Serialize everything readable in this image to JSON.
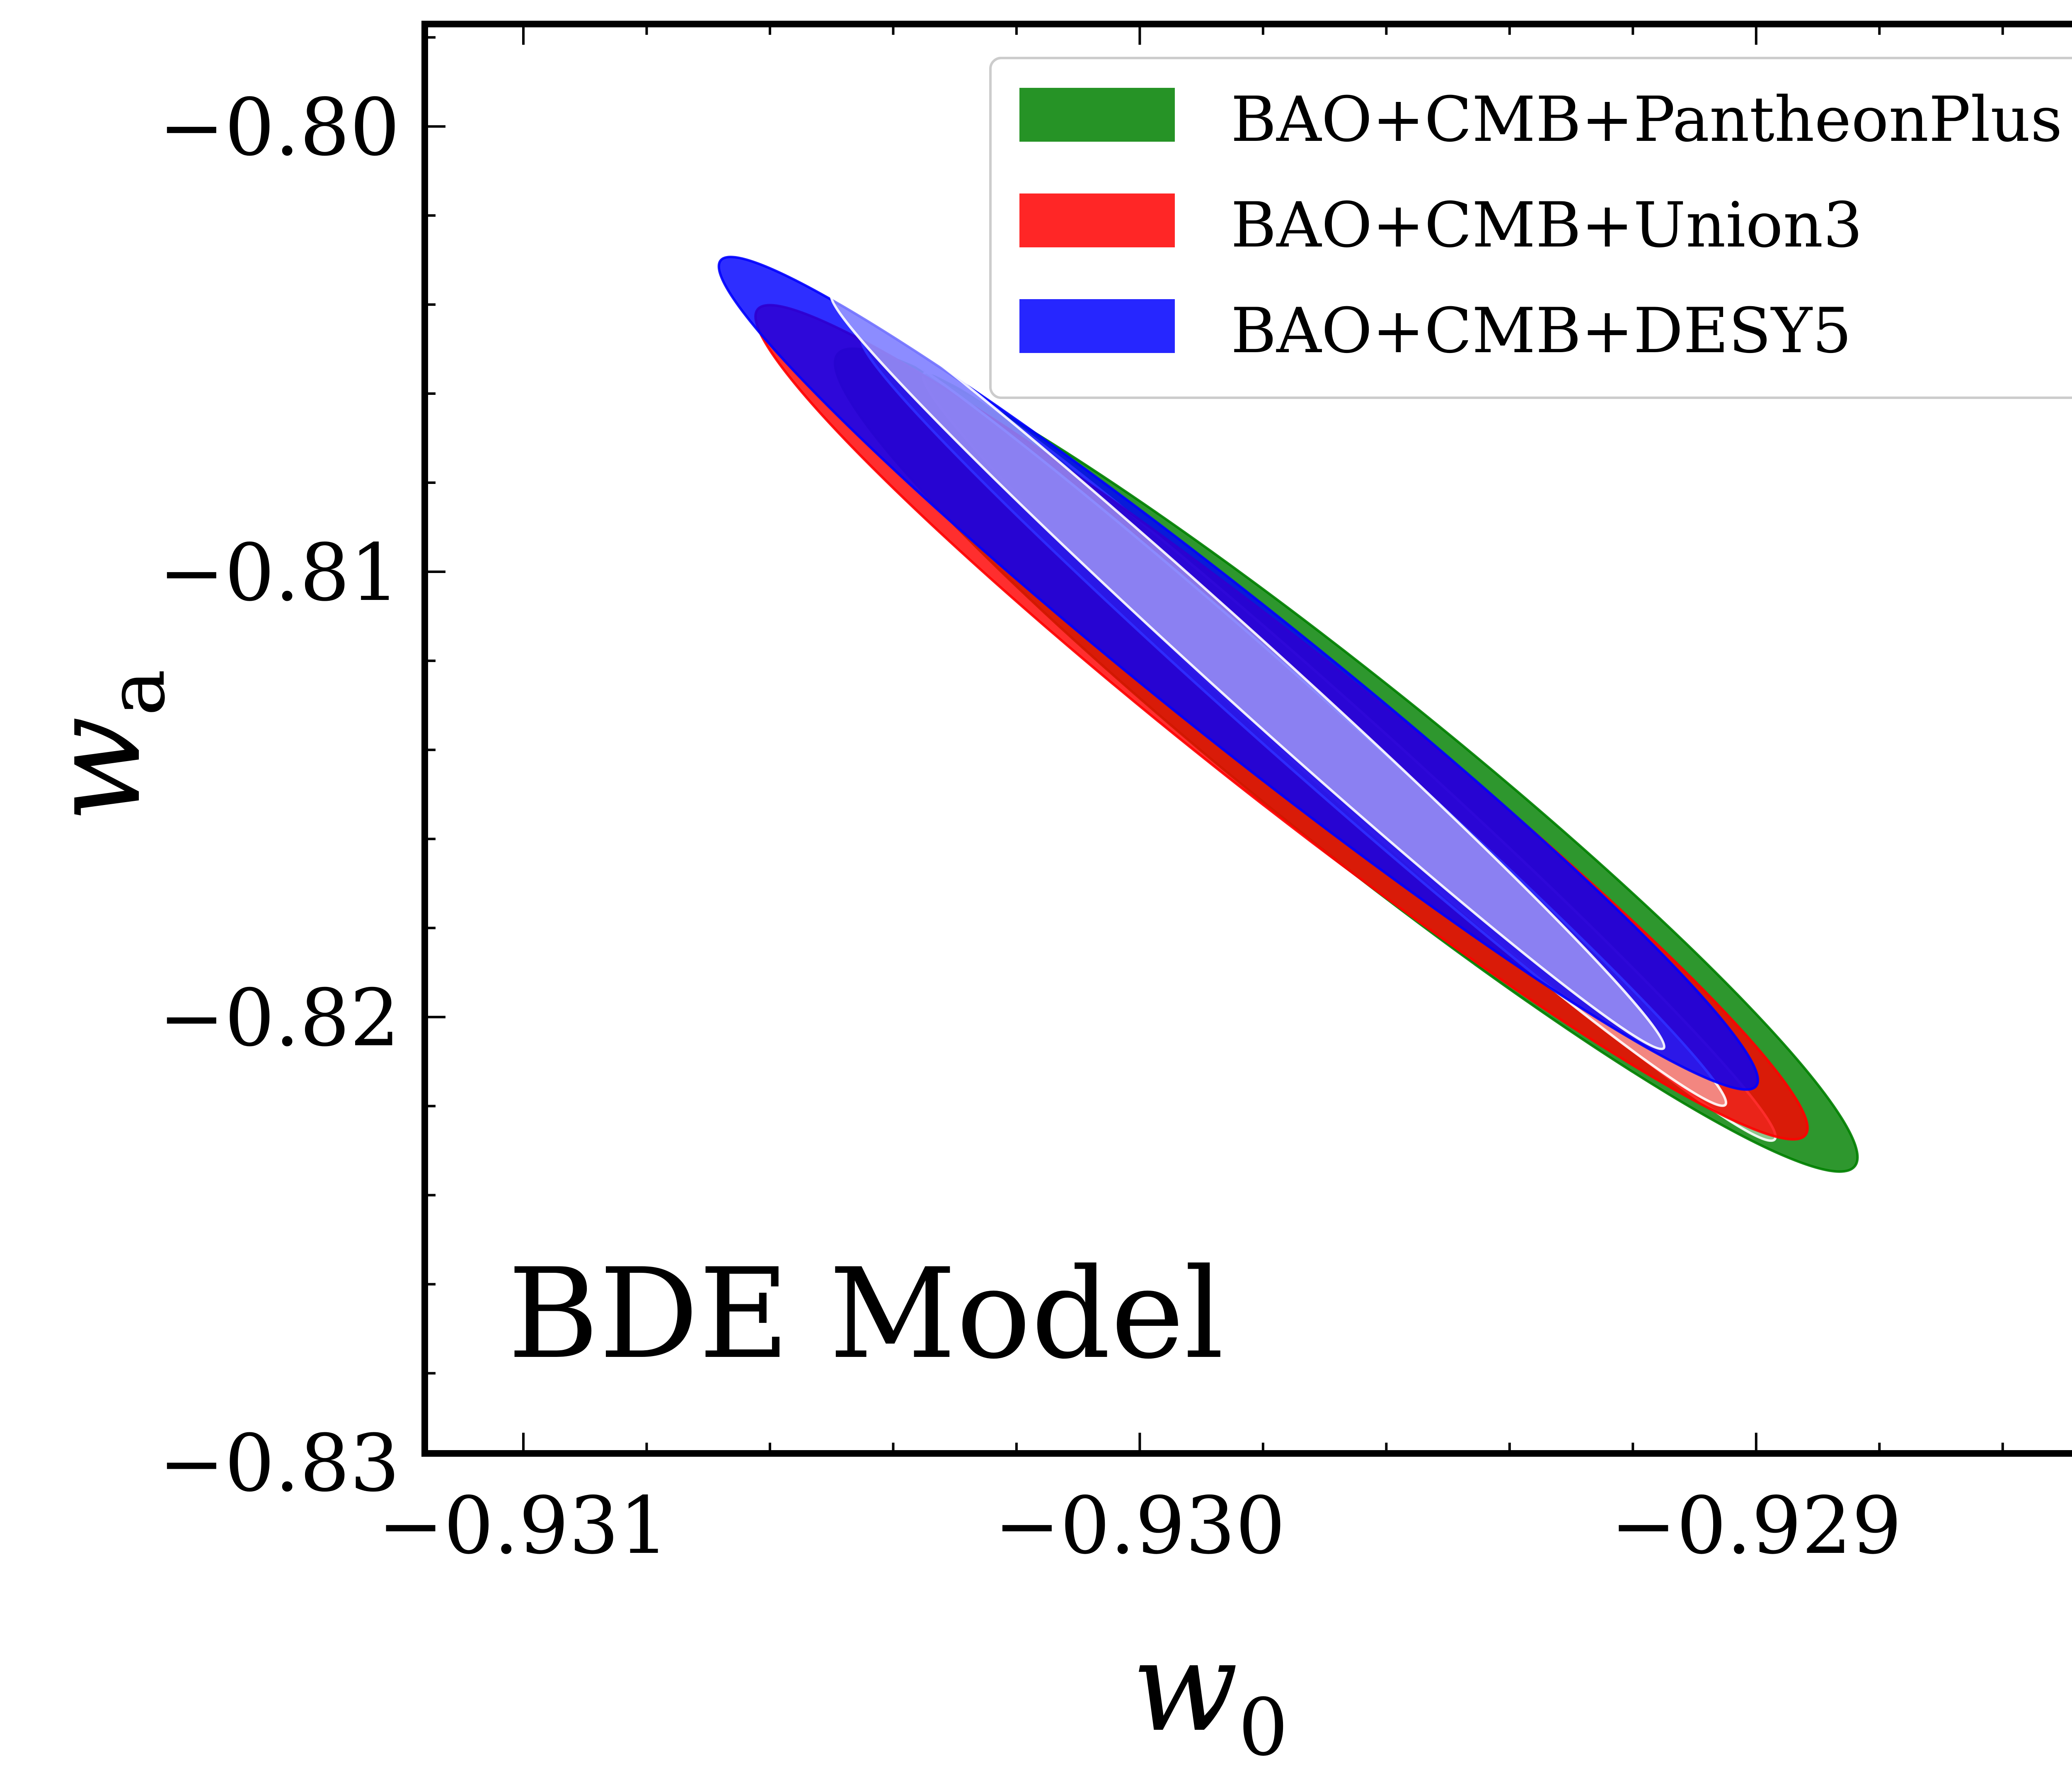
{
  "chart_data": {
    "type": "contour",
    "title": "",
    "xlabel": {
      "base": "w",
      "sub": "0"
    },
    "ylabel": {
      "base": "w",
      "sub": "a"
    },
    "xlim": [
      -0.93116,
      -0.92838
    ],
    "ylim": [
      -0.8298,
      -0.7977
    ],
    "xticks": [
      -0.931,
      -0.93,
      -0.929
    ],
    "xtick_labels": [
      "−0.931",
      "−0.930",
      "−0.929"
    ],
    "xminor_step": 0.0002,
    "yticks": [
      -0.8,
      -0.81,
      -0.82,
      -0.83
    ],
    "ytick_labels": [
      "−0.80",
      "−0.81",
      "−0.82",
      "−0.83"
    ],
    "yminor_step": 0.002,
    "annotation": "BDE Model",
    "legend_position": "upper right",
    "series": [
      {
        "name": "BAO+CMB+PantheonPlus",
        "color": "#008000",
        "outer": {
          "start": [
            -0.93049,
            -0.80511
          ],
          "end": [
            -0.92884,
            -0.82335
          ],
          "half_width": 0.00022
        },
        "inner": {
          "start": [
            -0.93035,
            -0.80555
          ],
          "end": [
            -0.92897,
            -0.82275
          ],
          "half_width": 0.0001
        }
      },
      {
        "name": "BAO+CMB+Union3",
        "color": "#ff0000",
        "outer": {
          "start": [
            -0.93062,
            -0.80411
          ],
          "end": [
            -0.92892,
            -0.82265
          ],
          "half_width": 0.0002
        },
        "inner": {
          "start": [
            -0.93045,
            -0.80477
          ],
          "end": [
            -0.92905,
            -0.82197
          ],
          "half_width": 9e-05
        }
      },
      {
        "name": "BAO+CMB+DESY5",
        "color": "#0000ff",
        "outer": {
          "start": [
            -0.93068,
            -0.80301
          ],
          "end": [
            -0.929,
            -0.82155
          ],
          "half_width": 0.00018
        },
        "inner": {
          "start": [
            -0.9305,
            -0.80377
          ],
          "end": [
            -0.92915,
            -0.8207
          ],
          "half_width": 8e-05
        }
      }
    ]
  }
}
